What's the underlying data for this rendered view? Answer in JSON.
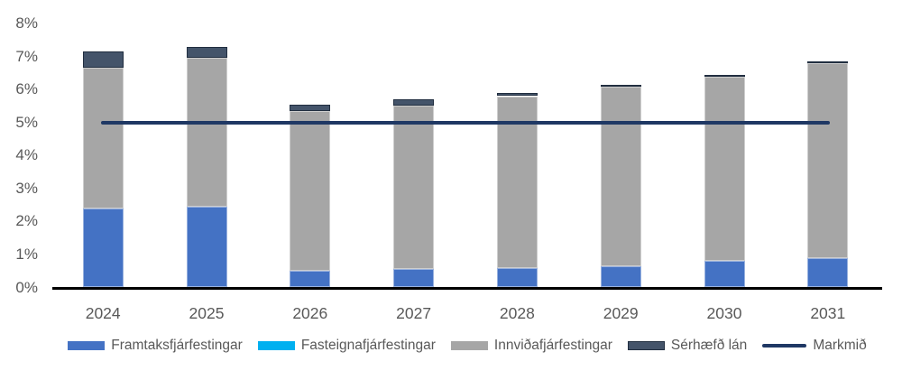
{
  "chart_data": {
    "type": "bar",
    "stacked": true,
    "title": "",
    "categories": [
      "2024",
      "2025",
      "2026",
      "2027",
      "2028",
      "2029",
      "2030",
      "2031"
    ],
    "series": [
      {
        "name": "Framtaksfjárfestingar",
        "color": "#4472C4",
        "border": "light",
        "values": [
          2.4,
          2.45,
          0.5,
          0.55,
          0.6,
          0.65,
          0.8,
          0.9
        ]
      },
      {
        "name": "Fasteignafjárfestingar",
        "color": "#00B0F0",
        "border": "light",
        "values": [
          0,
          0,
          0,
          0,
          0,
          0,
          0,
          0
        ]
      },
      {
        "name": "Innviðafjárfestingar",
        "color": "#A6A6A6",
        "border": "light",
        "values": [
          4.25,
          4.5,
          4.85,
          4.95,
          5.2,
          5.45,
          5.6,
          5.9
        ]
      },
      {
        "name": "Sérhæfð lán",
        "color": "#44546A",
        "border": "dark",
        "values": [
          0.5,
          0.35,
          0.2,
          0.2,
          0.1,
          0.05,
          0.05,
          0.05
        ]
      }
    ],
    "target_line": {
      "name": "Markmið",
      "color": "#1F3864",
      "value": 5.0
    },
    "y_tick_labels": [
      "0%",
      "1%",
      "2%",
      "3%",
      "4%",
      "5%",
      "6%",
      "7%",
      "8%"
    ],
    "ylim": [
      0,
      8
    ],
    "grid": false,
    "legend_position": "bottom",
    "text_color": "#595959",
    "axis_color": "#000000"
  }
}
